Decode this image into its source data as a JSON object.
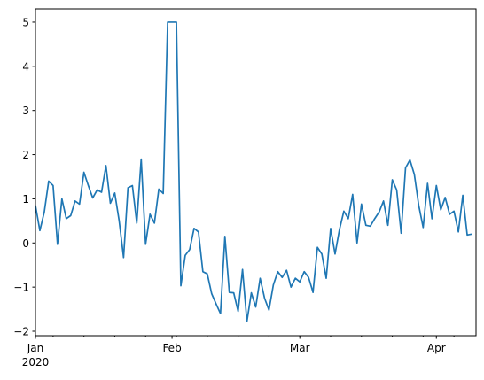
{
  "chart_data": {
    "type": "line",
    "title": "",
    "xlabel": "",
    "ylabel": "",
    "x_start": "2020-01-01",
    "x_frequency": "daily",
    "xlim": [
      "2020-01-01",
      "2020-04-10"
    ],
    "ylim": [
      -2.1,
      5.3
    ],
    "grid": false,
    "colors": {
      "line": "#1f77b4",
      "axes": "#000000"
    },
    "y_ticks": [
      -2,
      -1,
      0,
      1,
      2,
      3,
      4,
      5
    ],
    "x_ticks": [
      {
        "date": "2020-01-01",
        "label": "Jan",
        "sublabel": "2020"
      },
      {
        "date": "2020-02-01",
        "label": "Feb"
      },
      {
        "date": "2020-03-01",
        "label": "Mar"
      },
      {
        "date": "2020-04-01",
        "label": "Apr"
      }
    ],
    "series": [
      {
        "values": [
          0.85,
          0.28,
          0.7,
          1.4,
          1.3,
          -0.03,
          1.0,
          0.55,
          0.62,
          0.95,
          0.88,
          1.6,
          1.3,
          1.02,
          1.2,
          1.15,
          1.75,
          0.9,
          1.13,
          0.5,
          -0.33,
          1.25,
          1.3,
          0.45,
          1.9,
          -0.03,
          0.65,
          0.45,
          1.22,
          1.12,
          5.0,
          5.0,
          5.0,
          -0.97,
          -0.28,
          -0.15,
          0.33,
          0.25,
          -0.65,
          -0.7,
          -1.15,
          -1.38,
          -1.6,
          0.15,
          -1.12,
          -1.13,
          -1.55,
          -0.6,
          -1.78,
          -1.13,
          -1.45,
          -0.8,
          -1.25,
          -1.52,
          -0.95,
          -0.65,
          -0.78,
          -0.62,
          -1.0,
          -0.8,
          -0.88,
          -0.65,
          -0.78,
          -1.12,
          -0.1,
          -0.25,
          -0.8,
          0.33,
          -0.25,
          0.3,
          0.72,
          0.55,
          1.1,
          0.0,
          0.88,
          0.4,
          0.38,
          0.55,
          0.7,
          0.95,
          0.4,
          1.43,
          1.2,
          0.22,
          1.7,
          1.88,
          1.55,
          0.85,
          0.35,
          1.35,
          0.55,
          1.3,
          0.75,
          1.03,
          0.65,
          0.72,
          0.25,
          1.08,
          0.18,
          0.2
        ]
      }
    ]
  }
}
